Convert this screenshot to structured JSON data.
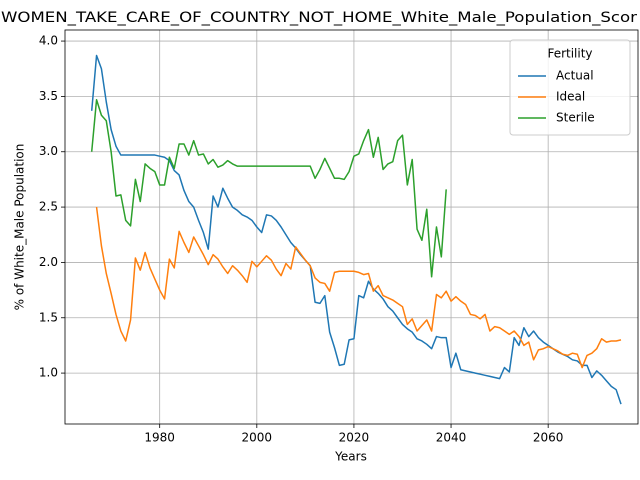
{
  "chart_data": {
    "type": "line",
    "title": "WOMEN_TAKE_CARE_OF_COUNTRY_NOT_HOME_White_Male_Population_Scor",
    "xlabel": "Years",
    "ylabel": "% of White_Male Population",
    "x": [
      1966,
      1967,
      1968,
      1969,
      1970,
      1971,
      1972,
      1973,
      1974,
      1975,
      1976,
      1977,
      1978,
      1979,
      1980,
      1981,
      1982,
      1983,
      1984,
      1985,
      1986,
      1987,
      1988,
      1989,
      1990,
      1991,
      1992,
      1993,
      1994,
      1995,
      1996,
      1997,
      1998,
      1999,
      2000,
      2001,
      2002,
      2003,
      2004,
      2005,
      2006,
      2007,
      2008,
      2009,
      2010,
      2011,
      2012,
      2013,
      2014,
      2015,
      2016,
      2017,
      2018,
      2019,
      2020,
      2021,
      2022,
      2023,
      2024,
      2025,
      2026,
      2027,
      2028,
      2029,
      2030,
      2031,
      2032,
      2033,
      2034,
      2035,
      2036,
      2037,
      2038,
      2039,
      2040,
      2041,
      2042,
      2043,
      2044,
      2045,
      2046,
      2047,
      2048,
      2049,
      2050,
      2051,
      2052,
      2053,
      2054,
      2055,
      2056,
      2057,
      2058,
      2059,
      2060,
      2061,
      2062,
      2063,
      2064,
      2065,
      2066,
      2067,
      2068,
      2069,
      2070,
      2071,
      2072,
      2073,
      2074,
      2075
    ],
    "series": [
      {
        "name": "Actual",
        "color": "#1f77b4",
        "values": [
          3.37,
          3.87,
          3.75,
          3.45,
          3.2,
          3.05,
          2.97,
          2.97,
          2.97,
          2.97,
          2.97,
          2.97,
          2.97,
          2.97,
          2.96,
          2.95,
          2.92,
          2.83,
          2.79,
          2.65,
          2.55,
          2.5,
          2.38,
          2.27,
          2.12,
          2.6,
          2.5,
          2.67,
          2.58,
          2.5,
          2.47,
          2.43,
          2.41,
          2.38,
          2.32,
          2.27,
          2.43,
          2.42,
          2.38,
          2.32,
          2.25,
          2.18,
          2.13,
          2.07,
          2.02,
          1.97,
          1.64,
          1.63,
          1.7,
          1.37,
          1.23,
          1.07,
          1.08,
          1.3,
          1.31,
          1.7,
          1.68,
          1.83,
          1.76,
          1.72,
          1.67,
          1.6,
          1.56,
          1.5,
          1.44,
          1.4,
          1.37,
          1.31,
          1.29,
          1.26,
          1.22,
          1.33,
          1.32,
          1.32,
          1.05,
          1.18,
          1.03,
          1.02,
          1.01,
          1.0,
          0.99,
          0.98,
          0.97,
          0.96,
          0.95,
          1.05,
          1.01,
          1.32,
          1.25,
          1.41,
          1.33,
          1.38,
          1.32,
          1.28,
          1.25,
          1.22,
          1.19,
          1.17,
          1.15,
          1.12,
          1.11,
          1.07,
          1.07,
          0.96,
          1.02,
          0.98,
          0.93,
          0.88,
          0.85,
          0.72
        ]
      },
      {
        "name": "Ideal",
        "color": "#ff7f0e",
        "values": [
          null,
          2.5,
          2.15,
          1.9,
          1.72,
          1.53,
          1.38,
          1.29,
          1.48,
          2.04,
          1.93,
          2.09,
          1.95,
          1.85,
          1.75,
          1.67,
          2.03,
          1.95,
          2.28,
          2.18,
          2.09,
          2.23,
          2.15,
          2.07,
          1.98,
          2.07,
          2.03,
          1.96,
          1.9,
          1.97,
          1.93,
          1.88,
          1.82,
          2.01,
          1.96,
          2.01,
          2.06,
          2.02,
          1.94,
          1.88,
          1.99,
          1.94,
          2.14,
          2.08,
          2.02,
          1.97,
          1.86,
          1.82,
          1.81,
          1.74,
          1.91,
          1.92,
          1.92,
          1.92,
          1.92,
          1.91,
          1.89,
          1.9,
          1.74,
          1.79,
          1.7,
          1.68,
          1.66,
          1.63,
          1.6,
          1.44,
          1.49,
          1.38,
          1.43,
          1.48,
          1.38,
          1.71,
          1.68,
          1.74,
          1.65,
          1.69,
          1.65,
          1.62,
          1.53,
          1.52,
          1.49,
          1.53,
          1.38,
          1.42,
          1.41,
          1.38,
          1.35,
          1.38,
          1.33,
          1.25,
          1.28,
          1.12,
          1.21,
          1.22,
          1.24,
          1.22,
          1.2,
          1.17,
          1.16,
          1.18,
          1.17,
          1.05,
          1.16,
          1.18,
          1.22,
          1.31,
          1.28,
          1.29,
          1.29,
          1.3
        ]
      },
      {
        "name": "Sterile",
        "color": "#2ca02c",
        "values": [
          3.0,
          3.47,
          3.33,
          3.28,
          3.0,
          2.6,
          2.61,
          2.38,
          2.33,
          2.75,
          2.55,
          2.89,
          2.85,
          2.82,
          2.7,
          2.7,
          2.95,
          2.85,
          3.07,
          3.07,
          2.97,
          3.1,
          2.97,
          2.98,
          2.89,
          2.93,
          2.86,
          2.88,
          2.92,
          2.89,
          2.87,
          2.87,
          2.87,
          2.87,
          2.87,
          2.87,
          2.87,
          2.87,
          2.87,
          2.87,
          2.87,
          2.87,
          2.87,
          2.87,
          2.87,
          2.87,
          2.76,
          2.84,
          2.94,
          2.85,
          2.76,
          2.76,
          2.75,
          2.82,
          2.96,
          2.98,
          3.1,
          3.2,
          2.95,
          3.13,
          2.84,
          2.89,
          2.91,
          3.1,
          3.15,
          2.7,
          2.93,
          2.3,
          2.2,
          2.48,
          1.87,
          2.32,
          2.05,
          2.66,
          null,
          null,
          null,
          null,
          null,
          null,
          null,
          null,
          null,
          null,
          null,
          null,
          null,
          null,
          null,
          null,
          null,
          null,
          null,
          null,
          null,
          null,
          null,
          null,
          null,
          null,
          null,
          null,
          null,
          null,
          null,
          null,
          null,
          null,
          null,
          null
        ]
      }
    ],
    "xlim": [
      1960.5,
      2078.5
    ],
    "xticks": [
      1980,
      2000,
      2020,
      2040,
      2060
    ],
    "ylim": [
      0.54,
      4.1
    ],
    "yticks": [
      {
        "value": 1,
        "label": "1.0"
      },
      {
        "value": 1.5,
        "label": "1.5"
      },
      {
        "value": 2,
        "label": "2.0"
      },
      {
        "value": 2.5,
        "label": "2.5"
      },
      {
        "value": 3,
        "label": "3.0"
      },
      {
        "value": 3.5,
        "label": "3.5"
      },
      {
        "value": 4,
        "label": "4.0"
      }
    ],
    "grid": true,
    "legend": {
      "title": "Fertility",
      "loc": "upper right"
    }
  }
}
